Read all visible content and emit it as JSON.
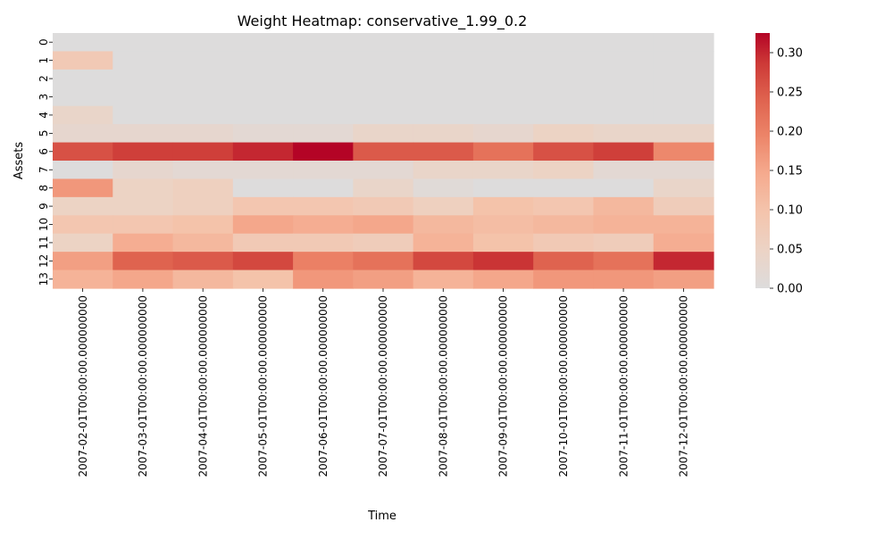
{
  "chart_data": {
    "type": "heatmap",
    "title": "Weight Heatmap: conservative_1.99_0.2",
    "xlabel": "Time",
    "ylabel": "Assets",
    "x": [
      "2007-02-01T00:00:00.000000000",
      "2007-03-01T00:00:00.000000000",
      "2007-04-01T00:00:00.000000000",
      "2007-05-01T00:00:00.000000000",
      "2007-06-01T00:00:00.000000000",
      "2007-07-01T00:00:00.000000000",
      "2007-08-01T00:00:00.000000000",
      "2007-09-01T00:00:00.000000000",
      "2007-10-01T00:00:00.000000000",
      "2007-11-01T00:00:00.000000000",
      "2007-12-01T00:00:00.000000000"
    ],
    "y": [
      "0",
      "1",
      "2",
      "3",
      "4",
      "5",
      "6",
      "7",
      "8",
      "9",
      "10",
      "11",
      "12",
      "13"
    ],
    "values": [
      [
        0.0,
        0.0,
        0.0,
        0.0,
        0.0,
        0.0,
        0.0,
        0.0,
        0.0,
        0.0,
        0.0
      ],
      [
        0.08,
        0.0,
        0.0,
        0.0,
        0.0,
        0.0,
        0.0,
        0.0,
        0.0,
        0.0,
        0.0
      ],
      [
        0.0,
        0.0,
        0.0,
        0.0,
        0.0,
        0.0,
        0.0,
        0.0,
        0.0,
        0.0,
        0.0
      ],
      [
        0.0,
        0.0,
        0.0,
        0.0,
        0.0,
        0.0,
        0.0,
        0.0,
        0.0,
        0.0,
        0.0
      ],
      [
        0.04,
        0.0,
        0.0,
        0.0,
        0.0,
        0.0,
        0.0,
        0.0,
        0.0,
        0.0,
        0.0
      ],
      [
        0.03,
        0.03,
        0.03,
        0.02,
        0.02,
        0.04,
        0.04,
        0.03,
        0.05,
        0.04,
        0.04
      ],
      [
        0.26,
        0.28,
        0.28,
        0.3,
        0.325,
        0.25,
        0.25,
        0.22,
        0.26,
        0.28,
        0.19
      ],
      [
        0.0,
        0.03,
        0.02,
        0.02,
        0.02,
        0.02,
        0.04,
        0.04,
        0.05,
        0.02,
        0.02
      ],
      [
        0.17,
        0.05,
        0.06,
        0.0,
        0.0,
        0.04,
        0.01,
        0.0,
        0.0,
        0.0,
        0.04
      ],
      [
        0.05,
        0.05,
        0.06,
        0.09,
        0.09,
        0.08,
        0.06,
        0.1,
        0.09,
        0.12,
        0.07
      ],
      [
        0.09,
        0.09,
        0.1,
        0.15,
        0.14,
        0.15,
        0.12,
        0.11,
        0.12,
        0.13,
        0.13
      ],
      [
        0.05,
        0.14,
        0.12,
        0.08,
        0.08,
        0.07,
        0.13,
        0.1,
        0.08,
        0.07,
        0.14
      ],
      [
        0.16,
        0.24,
        0.25,
        0.27,
        0.2,
        0.22,
        0.27,
        0.29,
        0.24,
        0.22,
        0.3
      ],
      [
        0.13,
        0.15,
        0.12,
        0.1,
        0.17,
        0.16,
        0.13,
        0.15,
        0.17,
        0.17,
        0.16
      ]
    ],
    "vmin": 0.0,
    "vmax": 0.325,
    "colormap": "coolwarm (centered, lower half)",
    "colorbar_ticks": [
      "0.00",
      "0.05",
      "0.10",
      "0.15",
      "0.20",
      "0.25",
      "0.30"
    ],
    "colorbar_tick_values": [
      0.0,
      0.05,
      0.1,
      0.15,
      0.2,
      0.25,
      0.3
    ],
    "grid": false,
    "legend": "colorbar-right"
  }
}
